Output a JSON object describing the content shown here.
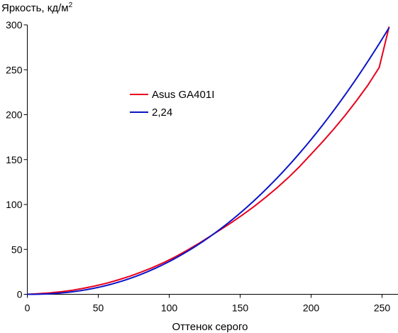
{
  "chart_data": {
    "type": "line",
    "ylabel": "Яркость, кд/м",
    "ylabel_sup": "2",
    "xlabel": "Оттенок серого",
    "xlim": [
      0,
      255
    ],
    "ylim": [
      0,
      300
    ],
    "xticks": [
      0,
      50,
      100,
      150,
      200,
      250
    ],
    "yticks": [
      0,
      50,
      100,
      150,
      200,
      250,
      300
    ],
    "grid": false,
    "legend_position": "upper-left-center",
    "series": [
      {
        "name": "Asus GA401I",
        "color": "#e8001c",
        "x": [
          0,
          8,
          16,
          24,
          32,
          40,
          48,
          56,
          64,
          72,
          80,
          88,
          96,
          104,
          112,
          120,
          128,
          136,
          144,
          152,
          160,
          168,
          176,
          184,
          192,
          200,
          208,
          216,
          224,
          232,
          240,
          248,
          255
        ],
        "y": [
          0,
          0.7,
          1.6,
          2.9,
          4.6,
          6.8,
          9.4,
          12.4,
          16.0,
          20.0,
          24.6,
          29.6,
          35.2,
          41.5,
          48.4,
          55.8,
          63.8,
          71.8,
          80.0,
          88.8,
          98.0,
          108.0,
          118.6,
          130.0,
          142.4,
          156.0,
          169.6,
          184.0,
          199.2,
          215.5,
          232.8,
          252.5,
          298
        ]
      },
      {
        "name": "2,24",
        "color": "#0a14c8",
        "gamma": 2.24,
        "x": [
          0,
          255
        ],
        "y": [
          0,
          297
        ]
      }
    ]
  }
}
